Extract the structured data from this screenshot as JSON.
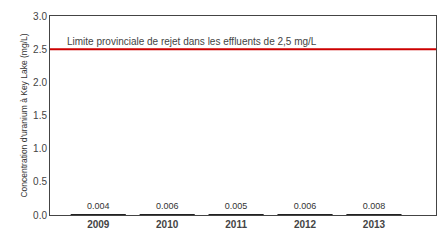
{
  "chart_data": {
    "type": "bar",
    "x": [
      2009,
      2010,
      2011,
      2012,
      2013
    ],
    "values": [
      0.004,
      0.006,
      0.005,
      0.006,
      0.008
    ],
    "color": "#222222",
    "data_labels": true,
    "ylabel": "Concentration d'uranium à Key Lake (mg/L)",
    "xlim": [
      2008.3,
      2013.9
    ],
    "xticks": [
      2009,
      2010,
      2011,
      2012,
      2013
    ],
    "ylim": [
      0.0,
      3.0
    ],
    "yticks": [
      {
        "value": 0.0,
        "label": "0.0"
      },
      0.5,
      {
        "value": 1.0,
        "label": "1.0"
      },
      1.5,
      {
        "value": 2.0,
        "label": "2.0"
      },
      2.5,
      {
        "value": 3.0,
        "label": "3.0"
      }
    ],
    "grid": false,
    "limit_line": {
      "y": 2.5,
      "label": "Limite provinciale de rejet dans les effluents de 2,5 mg/L",
      "color": "#cc0000"
    }
  }
}
